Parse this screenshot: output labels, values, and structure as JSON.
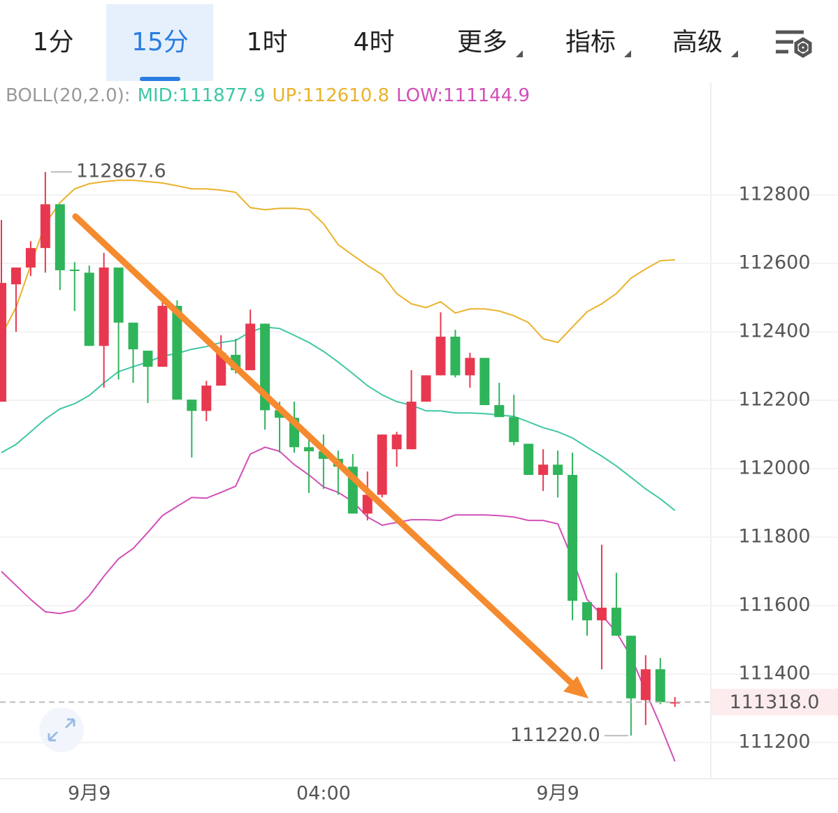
{
  "tabs": [
    "1分",
    "15分",
    "1时",
    "4时",
    "更多",
    "指标",
    "高级"
  ],
  "active_tab": 1,
  "dropdown_tabs": [
    4,
    5,
    6
  ],
  "chart_data": {
    "type": "candlestick",
    "indicator": "BOLL(20,2.0):",
    "categories": [
      null,
      null,
      null,
      null,
      null,
      null,
      "9月9",
      null,
      null,
      null,
      null,
      null,
      null,
      null,
      null,
      null,
      null,
      null,
      null,
      null,
      null,
      null,
      "04:00",
      null,
      null,
      null,
      null,
      null,
      null,
      null,
      null,
      null,
      null,
      null,
      null,
      null,
      null,
      null,
      "9月9",
      null,
      null,
      null,
      null,
      null,
      null,
      null,
      null
    ],
    "open": [
      112196,
      112539,
      112588,
      112645,
      112773,
      112582,
      112573,
      112359,
      112588,
      112427,
      112345,
      112298,
      112476,
      112202,
      112169,
      112243,
      112333,
      112288,
      112424,
      112171,
      112149,
      112063,
      112051,
      112029,
      112006,
      111869,
      111924,
      112057,
      112057,
      112196,
      112273,
      112386,
      112273,
      112324,
      112186,
      112151,
      112073,
      111982,
      112012,
      111982,
      111610,
      111557,
      111594,
      111512,
      111324,
      111414,
      111316
    ],
    "high": [
      112727,
      112588,
      112665,
      112867.6,
      112773,
      112604,
      112594,
      112631,
      112588,
      112427,
      112345,
      112496,
      112492,
      112202,
      112257,
      112390,
      112380,
      112465,
      112424,
      112196,
      112196,
      112104,
      112100,
      112053,
      112043,
      111992,
      112100,
      112108,
      112288,
      112273,
      112457,
      112406,
      112339,
      112324,
      112251,
      112216,
      112073,
      112057,
      112053,
      112047,
      111610,
      111778,
      111696,
      111512,
      111455,
      111447,
      111333
    ],
    "low": [
      112196,
      112400,
      112563,
      112573,
      112522,
      112461,
      112359,
      112237,
      112261,
      112251,
      112192,
      112298,
      112202,
      112033,
      112139,
      112243,
      112278,
      112288,
      112114,
      112047,
      112047,
      111929,
      111941,
      111924,
      111869,
      111849,
      111916,
      112006,
      112057,
      112196,
      112273,
      112267,
      112237,
      112186,
      112151,
      112069,
      111982,
      111935,
      111916,
      111557,
      111512,
      111414,
      111512,
      111220,
      111251,
      111312,
      111304
    ],
    "close": [
      112543,
      112588,
      112645,
      112773,
      112580,
      112578,
      112359,
      112588,
      112427,
      112349,
      112298,
      112476,
      112202,
      112169,
      112243,
      112339,
      112288,
      112424,
      112171,
      112149,
      112063,
      112051,
      112029,
      112006,
      111869,
      111924,
      112100,
      112100,
      112196,
      112273,
      112386,
      112273,
      112324,
      112186,
      112151,
      112078,
      111982,
      112012,
      111982,
      111614,
      111557,
      111594,
      111512,
      111329,
      111414,
      111318,
      111318.0
    ],
    "up_color": "#e8384f",
    "down_color": "#2fb45a",
    "lines": [
      {
        "legend": "MID:111877.9",
        "color": "#3fc7a5",
        "values": [
          112047,
          112071,
          112108,
          112145,
          112175,
          112190,
          112214,
          112251,
          112284,
          112298,
          112312,
          112329,
          112337,
          112349,
          112357,
          112369,
          112375,
          112400,
          112414,
          112410,
          112390,
          112369,
          112343,
          112312,
          112278,
          112243,
          112216,
          112196,
          112186,
          112169,
          112169,
          112163,
          112163,
          112161,
          112157,
          112153,
          112137,
          112120,
          112108,
          112090,
          112063,
          112037,
          112008,
          111975,
          111941,
          111912,
          111877.9
        ]
      },
      {
        "legend": "UP:112610.8",
        "color": "#e9b22a",
        "values": [
          112390,
          112471,
          112594,
          112716,
          112778,
          112818,
          112833,
          112839,
          112843,
          112843,
          112839,
          112835,
          112827,
          112818,
          112818,
          112814,
          112808,
          112763,
          112757,
          112761,
          112761,
          112757,
          112716,
          112655,
          112624,
          112594,
          112567,
          112512,
          112482,
          112471,
          112488,
          112455,
          112467,
          112467,
          112461,
          112447,
          112427,
          112380,
          112369,
          112414,
          112459,
          112482,
          112512,
          112557,
          112584,
          112608,
          112610.8
        ]
      },
      {
        "legend": "LOW:111144.9",
        "color": "#d24fb8",
        "values": [
          111700,
          111659,
          111618,
          111582,
          111577,
          111586,
          111629,
          111686,
          111737,
          111767,
          111814,
          111863,
          111890,
          111916,
          111914,
          111931,
          111949,
          112043,
          112063,
          112051,
          112012,
          111982,
          111947,
          111931,
          111904,
          111859,
          111835,
          111843,
          111851,
          111851,
          111849,
          111865,
          111865,
          111865,
          111863,
          111859,
          111849,
          111849,
          111839,
          111737,
          111618,
          111573,
          111522,
          111451,
          111349,
          111251,
          111144.9
        ]
      }
    ],
    "ylim": [
      111094,
      113129
    ],
    "yticks": [
      111200,
      111400,
      111600,
      111800,
      112000,
      112200,
      112400,
      112600,
      112800
    ],
    "grid": true,
    "high_marker": {
      "value": 112867.6,
      "index": 3
    },
    "low_marker": {
      "value": 111220,
      "label": "111220.0",
      "index": 43
    },
    "last_price": {
      "value": 111318,
      "label": "111318.0"
    }
  }
}
